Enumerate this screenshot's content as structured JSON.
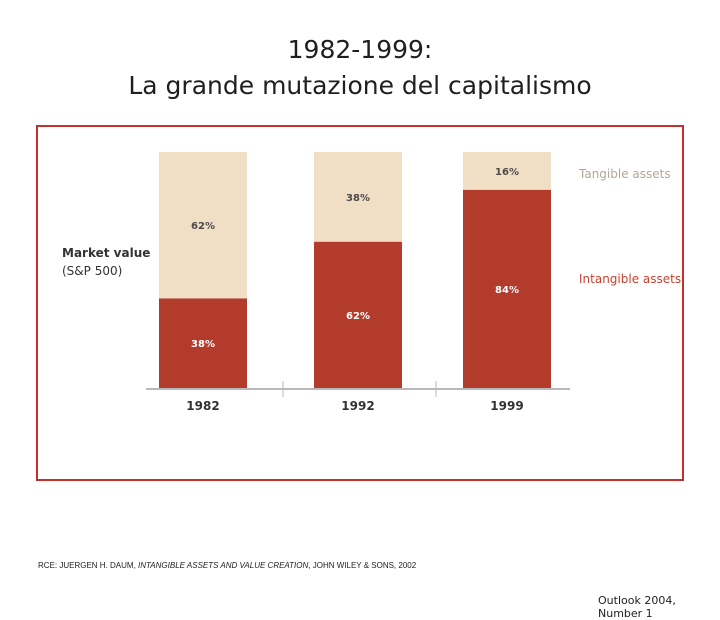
{
  "slide": {
    "title_line1": "1982-1999:",
    "title_line2": "La grande mutazione del capitalismo"
  },
  "figure": {
    "side_label_line1": "Market value",
    "side_label_line2": "(S&P 500)",
    "source_prefix": "RCE: JUERGEN H. DAUM, ",
    "source_book": "INTANGIBLE ASSETS AND VALUE CREATION",
    "source_suffix": ", JOHN WILEY & SONS, 2002",
    "footer": "Outlook 2004, Number 1"
  },
  "chart_data": {
    "type": "bar",
    "stacked": true,
    "categories": [
      "1982",
      "1992",
      "1999"
    ],
    "series": [
      {
        "name": "Intangible assets",
        "values": [
          38,
          62,
          84
        ],
        "labels": [
          "38%",
          "62%",
          "84%"
        ],
        "color": "#b23b2c",
        "label_color": "#ffffff"
      },
      {
        "name": "Tangible assets",
        "values": [
          62,
          38,
          16
        ],
        "labels": [
          "62%",
          "38%",
          "16%"
        ],
        "color": "#f0dfc4",
        "label_color": "#4a4a4a"
      }
    ],
    "ylim": [
      0,
      100
    ],
    "legend": {
      "placement": "right",
      "colors": {
        "Intangible assets": "#c9402f",
        "Tangible assets": "#b3a896"
      }
    },
    "grid": false
  }
}
